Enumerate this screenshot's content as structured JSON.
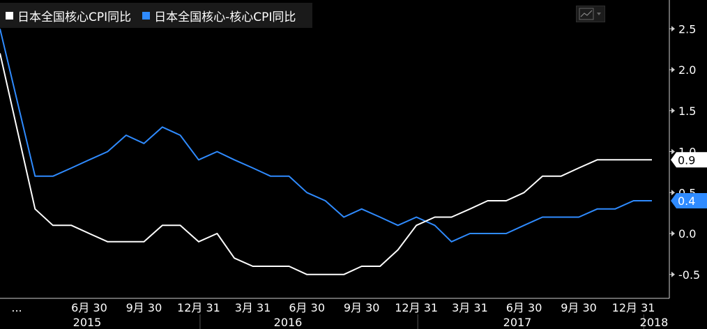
{
  "legend": {
    "items": [
      {
        "label": "日本全国核心CPI同比",
        "color": "#ffffff"
      },
      {
        "label": "日本全国核心-核心CPI同比",
        "color": "#2f8bff"
      }
    ]
  },
  "toolbar": {
    "chart_type_icon": "line-chart-icon"
  },
  "chart_data": {
    "type": "line",
    "x": [
      "2015-01-31",
      "2015-03-31",
      "2015-04-30",
      "2015-05-31",
      "2015-06-30",
      "2015-07-31",
      "2015-08-31",
      "2015-09-30",
      "2015-10-31",
      "2015-11-30",
      "2015-12-31",
      "2016-01-31",
      "2016-02-29",
      "2016-03-31",
      "2016-04-30",
      "2016-05-31",
      "2016-06-30",
      "2016-07-31",
      "2016-08-31",
      "2016-09-30",
      "2016-10-31",
      "2016-11-30",
      "2016-12-31",
      "2017-01-31",
      "2017-02-28",
      "2017-03-31",
      "2017-04-30",
      "2017-05-31",
      "2017-06-30",
      "2017-07-31",
      "2017-08-31",
      "2017-09-30",
      "2017-10-31",
      "2017-11-30",
      "2017-12-31",
      "2018-01-31"
    ],
    "series": [
      {
        "name": "日本全国核心CPI同比",
        "color": "#ffffff",
        "values": [
          2.2,
          0.3,
          0.1,
          0.1,
          0.0,
          -0.1,
          -0.1,
          -0.1,
          0.1,
          0.1,
          -0.1,
          0.0,
          -0.3,
          -0.4,
          -0.4,
          -0.4,
          -0.5,
          -0.5,
          -0.5,
          -0.4,
          -0.4,
          -0.2,
          0.1,
          0.2,
          0.2,
          0.3,
          0.4,
          0.4,
          0.5,
          0.7,
          0.7,
          0.8,
          0.9,
          0.9,
          0.9,
          0.9
        ]
      },
      {
        "name": "日本全国核心-核心CPI同比",
        "color": "#2f8bff",
        "values": [
          2.5,
          0.7,
          0.7,
          0.8,
          0.9,
          1.0,
          1.2,
          1.1,
          1.3,
          1.2,
          0.9,
          1.0,
          0.9,
          0.8,
          0.7,
          0.7,
          0.5,
          0.4,
          0.2,
          0.3,
          0.2,
          0.1,
          0.2,
          0.1,
          -0.1,
          0.0,
          0.0,
          0.0,
          0.1,
          0.2,
          0.2,
          0.2,
          0.3,
          0.3,
          0.4,
          0.4
        ]
      }
    ],
    "ylim": [
      -0.8,
      2.8
    ],
    "y_ticks": [
      "2.5",
      "2.0",
      "1.5",
      "1.0",
      "0.5",
      "0.0",
      "-0.5"
    ],
    "x_tick_labels": [
      "...",
      "6月 30",
      "9月 30",
      "12月 31",
      "3月 31",
      "6月 30",
      "9月 30",
      "12月 31",
      "3月 31",
      "6月 30",
      "9月 30",
      "12月 31"
    ],
    "years": [
      "2015",
      "2016",
      "2017",
      "2018"
    ],
    "last_value_labels": [
      "0.9",
      "0.4"
    ],
    "grid": false,
    "legend_position": "top-left"
  }
}
